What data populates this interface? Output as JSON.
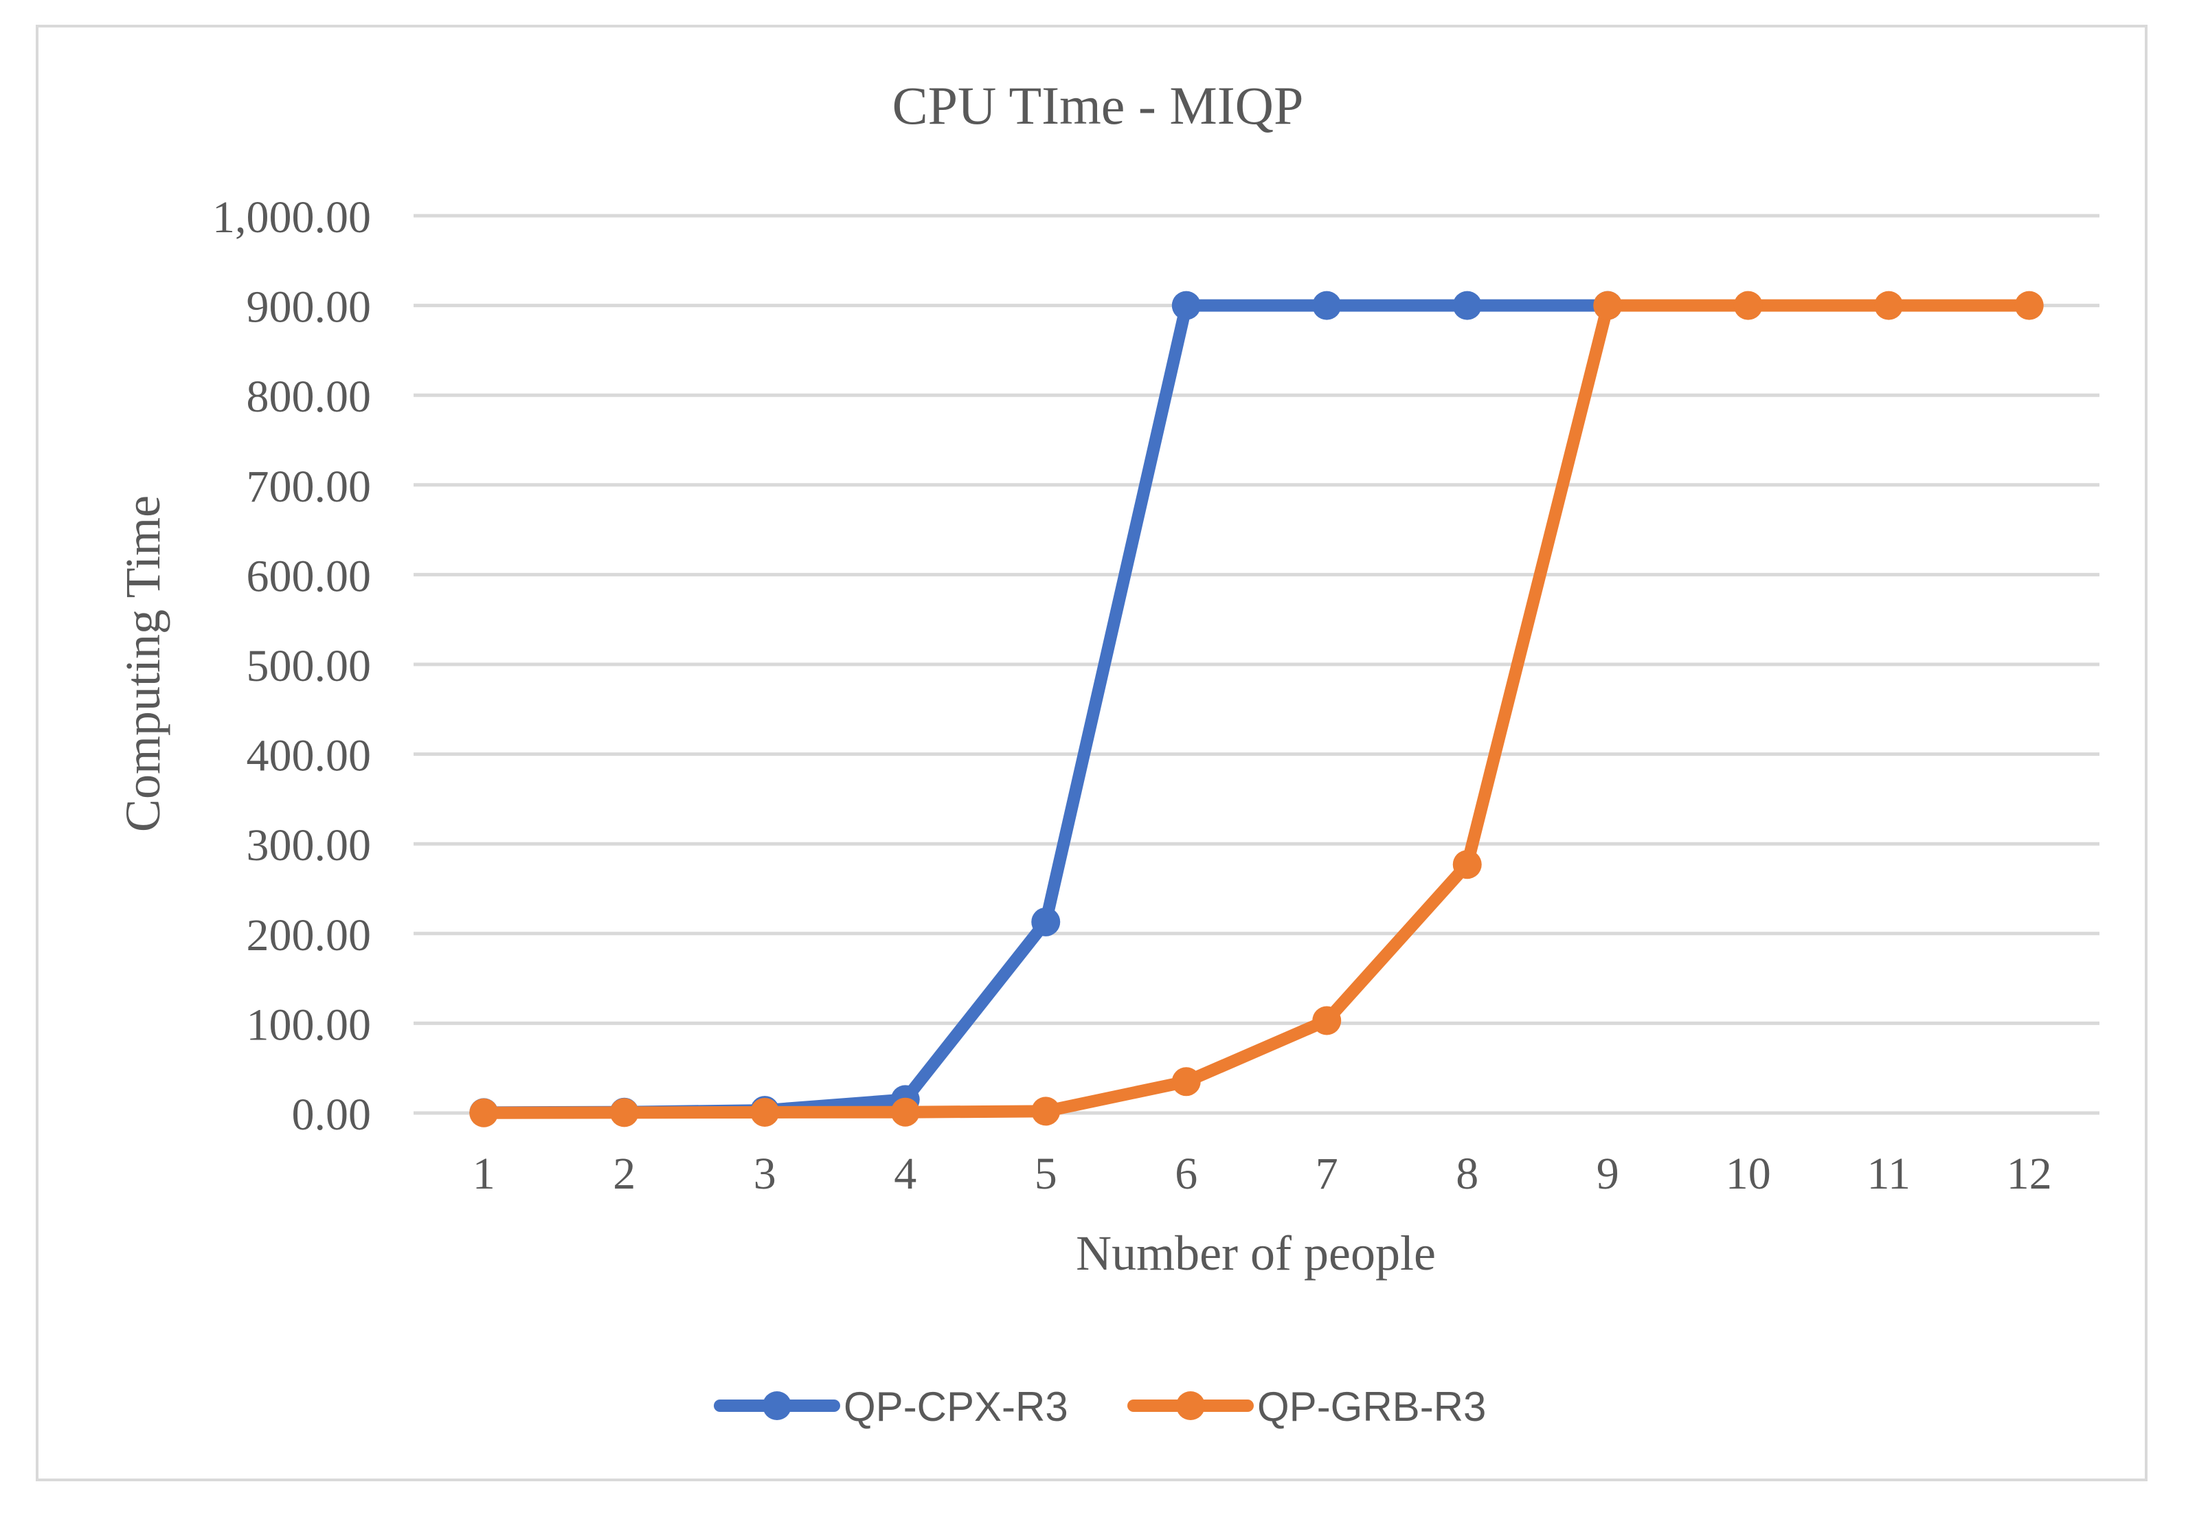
{
  "chart_data": {
    "type": "line",
    "title": "CPU TIme - MIQP",
    "xlabel": "Number of people",
    "ylabel": "Computing Time",
    "categories": [
      "1",
      "2",
      "3",
      "4",
      "5",
      "6",
      "7",
      "8",
      "9",
      "10",
      "11",
      "12"
    ],
    "y_ticks": [
      "0.00",
      "100.00",
      "200.00",
      "300.00",
      "400.00",
      "500.00",
      "600.00",
      "700.00",
      "800.00",
      "900.00",
      "1,000.00"
    ],
    "ylim": [
      0,
      1000
    ],
    "grid": true,
    "legend_position": "bottom",
    "series": [
      {
        "name": "QP-CPX-R3",
        "color": "#4472c4",
        "values": [
          0.5,
          1,
          3,
          15,
          213,
          900,
          900,
          900,
          900,
          null,
          null,
          null
        ]
      },
      {
        "name": "QP-GRB-R3",
        "color": "#ed7d31",
        "values": [
          0.2,
          0.5,
          0.8,
          1,
          2,
          35,
          103,
          277,
          900,
          900,
          900,
          900
        ]
      }
    ]
  }
}
